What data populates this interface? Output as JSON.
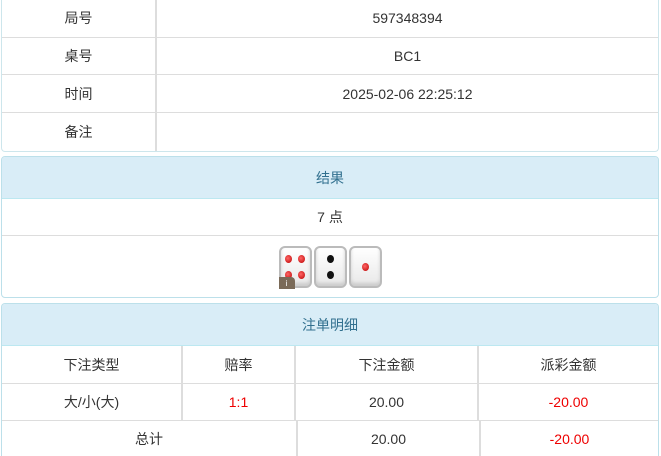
{
  "info": {
    "rows": [
      {
        "label": "局号",
        "value": "597348394"
      },
      {
        "label": "桌号",
        "value": "BC1"
      },
      {
        "label": "时间",
        "value": "2025-02-06 22:25:12"
      },
      {
        "label": "备注",
        "value": ""
      }
    ]
  },
  "result": {
    "title": "结果",
    "points": "7 点",
    "dice": [
      4,
      2,
      1
    ],
    "badge": "i"
  },
  "bets": {
    "title": "注单明细",
    "headers": [
      "下注类型",
      "赔率",
      "下注金额",
      "派彩金额"
    ],
    "rows": [
      {
        "type": "大/小(大)",
        "odds": "1:1",
        "amount": "20.00",
        "payout": "-20.00"
      }
    ],
    "total": {
      "label": "总计",
      "amount": "20.00",
      "payout": "-20.00"
    }
  },
  "colors": {
    "header_bg": "#d9edf7",
    "header_text": "#31708f",
    "negative": "#ee0000"
  }
}
